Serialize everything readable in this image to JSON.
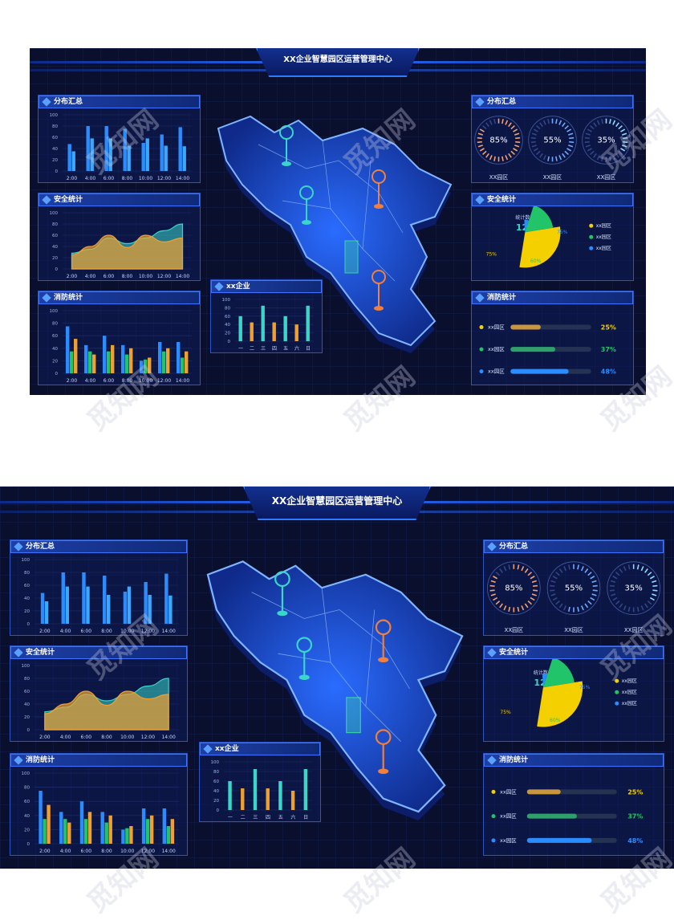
{
  "title": "XX企业智慧园区运营管理中心",
  "title_small": "XX企业智慧园区运营管理中心",
  "panels": {
    "dist_summary": "分布汇总",
    "safety_stats": "安全统计",
    "fire_stats": "消防统计",
    "company": "xx企业",
    "right_dist_summary": "分布汇总",
    "right_safety_stats": "安全统计",
    "right_fire_stats": "消防统计"
  },
  "colors": {
    "accent": "#2f7bff",
    "orange": "#f0a030",
    "teal": "#3ad6c8",
    "green": "#22c46a",
    "blue": "#2a8cff",
    "yellow": "#f5d000"
  },
  "chart_data": [
    {
      "type": "bar",
      "title": "分布汇总",
      "categories": [
        "2:00",
        "4:00",
        "6:00",
        "8:00",
        "10:00",
        "12:00",
        "14:00"
      ],
      "ylim": [
        0,
        100
      ],
      "yticks": [
        0,
        20,
        40,
        60,
        80,
        100
      ],
      "series": [
        {
          "values": [
            48,
            80,
            80,
            75,
            50,
            65,
            78
          ]
        },
        {
          "values": [
            35,
            58,
            58,
            45,
            58,
            45,
            44
          ]
        }
      ]
    },
    {
      "type": "area",
      "title": "安全统计",
      "categories": [
        "2:00",
        "4:00",
        "6:00",
        "8:00",
        "10:00",
        "12:00",
        "14:00"
      ],
      "ylim": [
        0,
        100
      ],
      "yticks": [
        0,
        20,
        40,
        60,
        80,
        100
      ],
      "series": [
        {
          "values": [
            28,
            35,
            55,
            45,
            55,
            68,
            80
          ]
        },
        {
          "values": [
            25,
            40,
            60,
            38,
            60,
            48,
            55
          ]
        }
      ]
    },
    {
      "type": "bar",
      "title": "消防统计",
      "categories": [
        "2:00",
        "4:00",
        "6:00",
        "8:00",
        "10:00",
        "12:00",
        "14:00"
      ],
      "ylim": [
        0,
        100
      ],
      "yticks": [
        0,
        20,
        40,
        60,
        80,
        100
      ],
      "series": [
        {
          "values": [
            75,
            45,
            60,
            45,
            20,
            50,
            50
          ]
        },
        {
          "values": [
            35,
            35,
            35,
            30,
            22,
            35,
            25
          ]
        },
        {
          "values": [
            55,
            30,
            45,
            40,
            25,
            40,
            35
          ]
        }
      ]
    },
    {
      "type": "bar",
      "title": "xx企业",
      "categories": [
        "一",
        "二",
        "三",
        "四",
        "五",
        "六",
        "日"
      ],
      "ylim": [
        0,
        100
      ],
      "yticks": [
        0,
        20,
        40,
        60,
        80,
        100
      ],
      "series": [
        {
          "values": [
            60,
            45,
            85,
            45,
            60,
            40,
            85
          ]
        }
      ]
    },
    {
      "type": "pie",
      "title": "安全统计",
      "center_label": "统计数量",
      "center_value": "128",
      "slices": [
        {
          "label": "75%",
          "value": 75,
          "color": "#f5d000"
        },
        {
          "label": "60%",
          "value": 60,
          "color": "#22c46a"
        },
        {
          "label": "75%",
          "value": 75,
          "color": "#2a8cff"
        }
      ]
    }
  ],
  "gauges": [
    {
      "value": "85%",
      "label": "XX园区",
      "pct": 85,
      "color": "#f0a070"
    },
    {
      "value": "55%",
      "label": "XX园区",
      "pct": 55,
      "color": "#6fa8ff"
    },
    {
      "value": "35%",
      "label": "XX园区",
      "pct": 35,
      "color": "#8fd8ff"
    }
  ],
  "legend": [
    {
      "label": "xx园区",
      "color": "#f5d000"
    },
    {
      "label": "xx园区",
      "color": "#22c46a"
    },
    {
      "label": "xx园区",
      "color": "#2a8cff"
    }
  ],
  "progress": [
    {
      "label": "xx园区",
      "value": "25%",
      "pct": 0.25,
      "color": "#c8963c"
    },
    {
      "label": "xx园区",
      "value": "37%",
      "pct": 0.37,
      "color": "#2ea06a"
    },
    {
      "label": "xx园区",
      "value": "48%",
      "pct": 0.48,
      "color": "#2a8cff"
    }
  ],
  "pct_labels": {
    "a": "75%",
    "b": "75%",
    "c": "60%"
  },
  "watermark": "觅知网"
}
